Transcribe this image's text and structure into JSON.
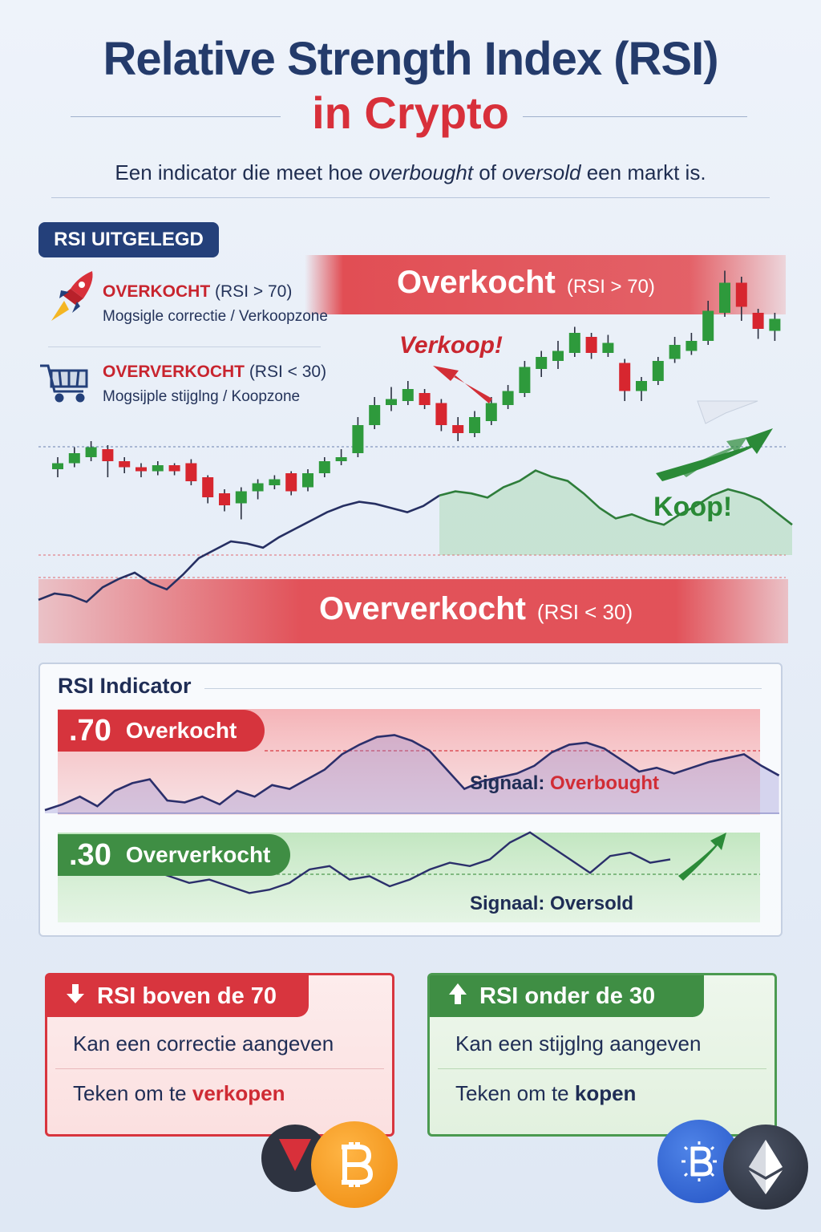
{
  "header": {
    "title_line1": "Relative Strength Index (RSI)",
    "title_line2": "in Crypto",
    "subtitle_pre": "Een indicator die meet hoe ",
    "subtitle_em1": "overbought",
    "subtitle_mid": " of ",
    "subtitle_em2": "oversold",
    "subtitle_post": " een markt is."
  },
  "explainer": {
    "badge": "RSI UITGELEGD",
    "overbought_head": "OVERKOCHT",
    "overbought_rsi": " (RSI > 70)",
    "overbought_sub": "Mogsigle correctie / Verkoopzone",
    "oversold_head": "OVERVERKOCHT",
    "oversold_rsi": " (RSI < 30)",
    "oversold_sub": "Mogsijple stijglng / Koopzone",
    "icons": {
      "overbought": "rocket-icon",
      "oversold": "shopping-cart-icon"
    }
  },
  "price_chart": {
    "band_top_label": "Overkocht",
    "band_top_rsi": "(RSI > 70)",
    "band_bottom_label": "Oververkocht",
    "band_bottom_rsi": "(RSI < 30)",
    "sell_label": "Verkoop!",
    "buy_label": "Koop!"
  },
  "rsi_panel": {
    "title": "RSI Indicator",
    "level_70": ".70",
    "level_70_label": "Overkocht",
    "level_30": ".30",
    "level_30_label": "Oververkocht",
    "signal_top_prefix": "Signaal: ",
    "signal_top_value": "Overbought",
    "signal_bottom": "Signaal: Oversold"
  },
  "cards": {
    "above": {
      "title": "RSI boven de 70",
      "row1": "Kan een correctie aangeven",
      "row2_pre": "Teken om te ",
      "row2_hl": "verkopen"
    },
    "below": {
      "title": "RSI onder de 30",
      "row1": "Kan een stijglng aangeven",
      "row2_pre": "Teken om te ",
      "row2_hl": "kopen"
    }
  },
  "colors": {
    "navy": "#243b6b",
    "red": "#d8303a",
    "green": "#3f8e44",
    "bitcoin": "#f29416",
    "ethereum": "#2c3343"
  },
  "chart_data": {
    "type": "candlestick",
    "candles": [
      {
        "o": 40,
        "c": 43,
        "h": 46,
        "l": 36
      },
      {
        "o": 43,
        "c": 48,
        "h": 51,
        "l": 41
      },
      {
        "o": 46,
        "c": 51,
        "h": 54,
        "l": 44
      },
      {
        "o": 50,
        "c": 44,
        "h": 52,
        "l": 36
      },
      {
        "o": 44,
        "c": 41,
        "h": 46,
        "l": 38
      },
      {
        "o": 41,
        "c": 39,
        "h": 43,
        "l": 36
      },
      {
        "o": 39,
        "c": 42,
        "h": 44,
        "l": 37
      },
      {
        "o": 42,
        "c": 39,
        "h": 43,
        "l": 37
      },
      {
        "o": 43,
        "c": 34,
        "h": 45,
        "l": 32
      },
      {
        "o": 36,
        "c": 26,
        "h": 37,
        "l": 23
      },
      {
        "o": 28,
        "c": 22,
        "h": 30,
        "l": 19
      },
      {
        "o": 23,
        "c": 29,
        "h": 31,
        "l": 15
      },
      {
        "o": 29,
        "c": 33,
        "h": 35,
        "l": 25
      },
      {
        "o": 32,
        "c": 35,
        "h": 37,
        "l": 30
      },
      {
        "o": 38,
        "c": 29,
        "h": 39,
        "l": 27
      },
      {
        "o": 31,
        "c": 38,
        "h": 40,
        "l": 29
      },
      {
        "o": 38,
        "c": 44,
        "h": 46,
        "l": 36
      },
      {
        "o": 44,
        "c": 46,
        "h": 50,
        "l": 42
      },
      {
        "o": 48,
        "c": 62,
        "h": 66,
        "l": 46
      },
      {
        "o": 62,
        "c": 72,
        "h": 76,
        "l": 60
      },
      {
        "o": 72,
        "c": 75,
        "h": 81,
        "l": 69
      },
      {
        "o": 74,
        "c": 80,
        "h": 84,
        "l": 72
      },
      {
        "o": 78,
        "c": 72,
        "h": 80,
        "l": 70
      },
      {
        "o": 73,
        "c": 62,
        "h": 75,
        "l": 59
      },
      {
        "o": 62,
        "c": 58,
        "h": 66,
        "l": 54
      },
      {
        "o": 58,
        "c": 66,
        "h": 69,
        "l": 56
      },
      {
        "o": 64,
        "c": 73,
        "h": 76,
        "l": 62
      },
      {
        "o": 72,
        "c": 79,
        "h": 82,
        "l": 70
      },
      {
        "o": 78,
        "c": 91,
        "h": 94,
        "l": 76
      },
      {
        "o": 90,
        "c": 96,
        "h": 99,
        "l": 86
      },
      {
        "o": 94,
        "c": 99,
        "h": 104,
        "l": 90
      },
      {
        "o": 98,
        "c": 108,
        "h": 111,
        "l": 96
      },
      {
        "o": 106,
        "c": 98,
        "h": 108,
        "l": 95
      },
      {
        "o": 98,
        "c": 103,
        "h": 107,
        "l": 96
      },
      {
        "o": 93,
        "c": 79,
        "h": 95,
        "l": 74
      },
      {
        "o": 79,
        "c": 84,
        "h": 86,
        "l": 74
      },
      {
        "o": 84,
        "c": 94,
        "h": 96,
        "l": 82
      },
      {
        "o": 95,
        "c": 102,
        "h": 106,
        "l": 93
      },
      {
        "o": 99,
        "c": 104,
        "h": 108,
        "l": 97
      },
      {
        "o": 104,
        "c": 119,
        "h": 124,
        "l": 102
      },
      {
        "o": 118,
        "c": 133,
        "h": 139,
        "l": 116
      },
      {
        "o": 133,
        "c": 121,
        "h": 136,
        "l": 114
      },
      {
        "o": 118,
        "c": 110,
        "h": 120,
        "l": 105
      },
      {
        "o": 109,
        "c": 115,
        "h": 118,
        "l": 104
      }
    ],
    "rsi": [
      22,
      25,
      24,
      21,
      28,
      32,
      35,
      30,
      27,
      34,
      42,
      46,
      50,
      49,
      47,
      52,
      56,
      60,
      64,
      67,
      69,
      68,
      66,
      64,
      67,
      72,
      74,
      73,
      71,
      76,
      79,
      84,
      81,
      79,
      73,
      66,
      61,
      63,
      60,
      58,
      63,
      67,
      72,
      75,
      73,
      70,
      64,
      58
    ],
    "rsi_panel_line": [
      45,
      48,
      52,
      47,
      55,
      59,
      61,
      50,
      49,
      52,
      48,
      55,
      52,
      58,
      56,
      61,
      66,
      74,
      79,
      83,
      84,
      81,
      76,
      66,
      56,
      60,
      62,
      64,
      68,
      75,
      79,
      80,
      77,
      71,
      65,
      67,
      64,
      67,
      70,
      72,
      74,
      68,
      63
    ],
    "rsi_panel_lower": [
      30,
      28,
      26,
      27,
      25,
      23,
      24,
      26,
      30,
      31,
      27,
      28,
      25,
      27,
      30,
      32,
      31,
      33,
      38,
      41,
      37,
      33,
      29,
      34,
      35,
      32,
      33
    ]
  }
}
